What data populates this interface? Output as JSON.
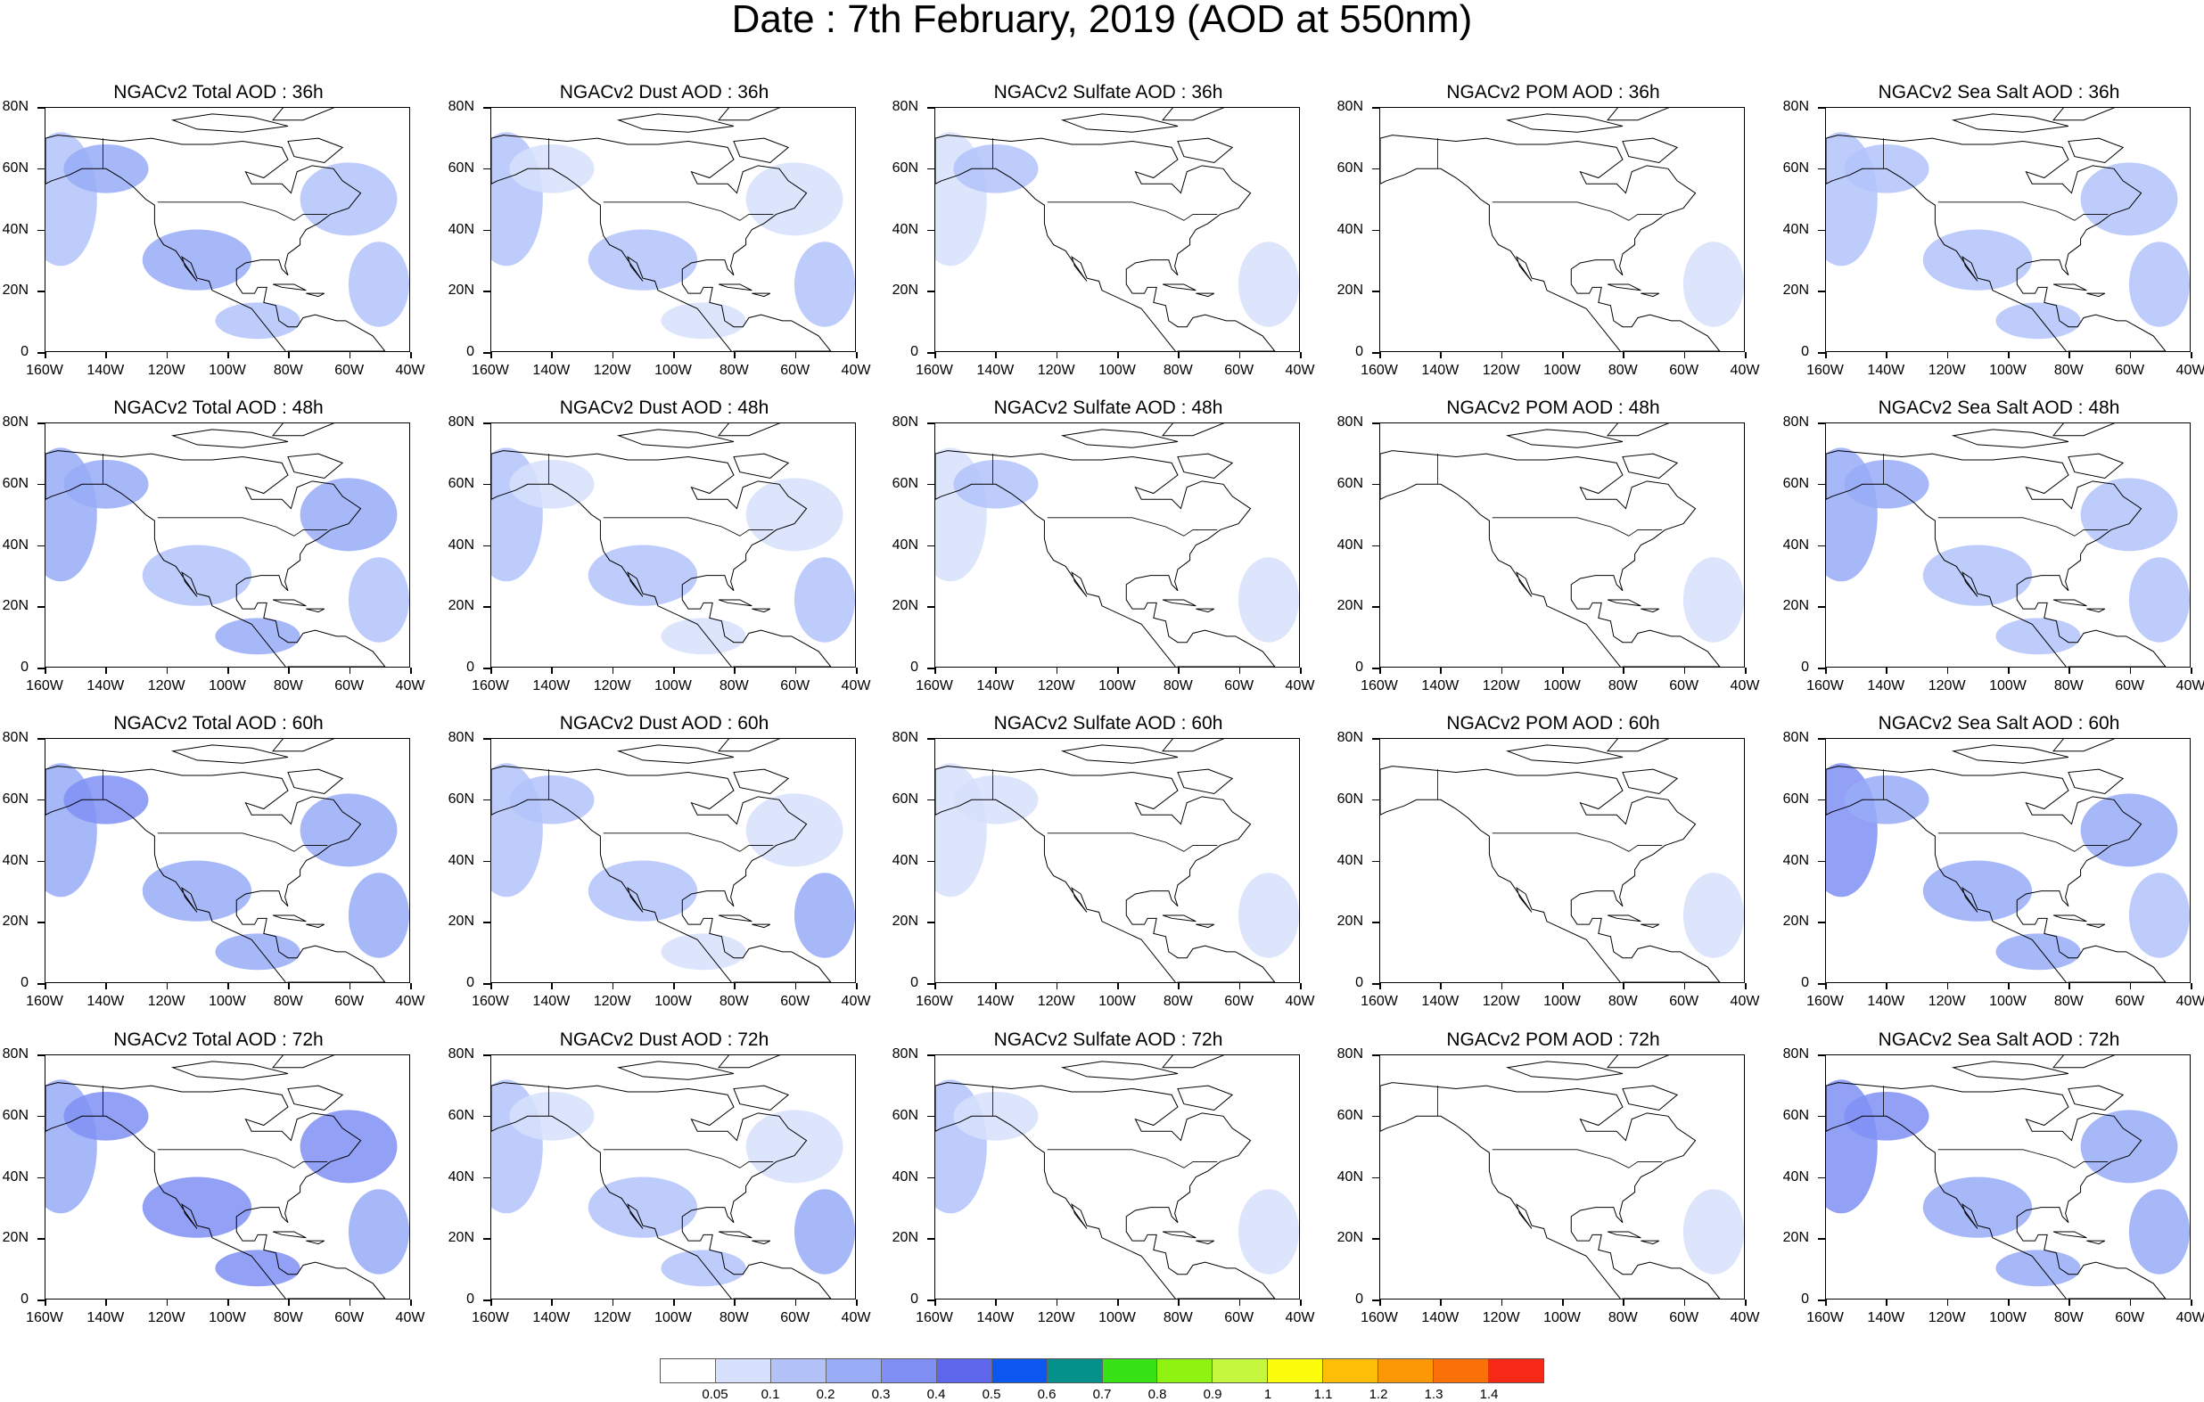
{
  "title": "Date : 7th February, 2019 (AOD at 550nm)",
  "row_labels": [
    "36h",
    "48h",
    "60h",
    "72h"
  ],
  "col_labels": [
    "Total",
    "Dust",
    "Sulfate",
    "POM",
    "Sea Salt"
  ],
  "panel_titles": [
    [
      "NGACv2 Total AOD : 36h",
      "NGACv2 Dust AOD : 36h",
      "NGACv2 Sulfate AOD : 36h",
      "NGACv2 POM AOD : 36h",
      "NGACv2 Sea Salt AOD : 36h"
    ],
    [
      "NGACv2 Total AOD : 48h",
      "NGACv2 Dust AOD : 48h",
      "NGACv2 Sulfate AOD : 48h",
      "NGACv2 POM AOD : 48h",
      "NGACv2 Sea Salt AOD : 48h"
    ],
    [
      "NGACv2 Total AOD : 60h",
      "NGACv2 Dust AOD : 60h",
      "NGACv2 Sulfate AOD : 60h",
      "NGACv2 POM AOD : 60h",
      "NGACv2 Sea Salt AOD : 60h"
    ],
    [
      "NGACv2 Total AOD : 72h",
      "NGACv2 Dust AOD : 72h",
      "NGACv2 Sulfate AOD : 72h",
      "NGACv2 POM AOD : 72h",
      "NGACv2 Sea Salt  AOD : 72h"
    ]
  ],
  "y_labels": [
    "80N",
    "60N",
    "40N",
    "20N",
    "0"
  ],
  "x_labels": [
    "160W",
    "140W",
    "120W",
    "100W",
    "80W",
    "60W",
    "40W"
  ],
  "colorbar": {
    "labels": [
      "0.05",
      "0.1",
      "0.2",
      "0.3",
      "0.4",
      "0.5",
      "0.6",
      "0.7",
      "0.8",
      "0.9",
      "1",
      "1.1",
      "1.2",
      "1.3",
      "1.4"
    ],
    "colors": [
      "#ffffff",
      "#d7e0fc",
      "#b3c3fa",
      "#98acf8",
      "#7f8ff4",
      "#5e66ec",
      "#0b57f0",
      "#04918c",
      "#37e314",
      "#8ef311",
      "#c6f73f",
      "#fcfc0d",
      "#fcbe07",
      "#fc9806",
      "#fb7008",
      "#f82817"
    ]
  },
  "plume_levels": {
    "total": [
      [
        0.15,
        0.2,
        0.15,
        0.15,
        0.2,
        0.15
      ],
      [
        0.2,
        0.25,
        0.2,
        0.15,
        0.15,
        0.2
      ],
      [
        0.2,
        0.3,
        0.25,
        0.2,
        0.2,
        0.25
      ],
      [
        0.25,
        0.35,
        0.3,
        0.25,
        0.3,
        0.3
      ]
    ],
    "dust": [
      [
        0.1,
        0.05,
        0.05,
        0.1,
        0.1,
        0.05
      ],
      [
        0.1,
        0.05,
        0.05,
        0.15,
        0.1,
        0.05
      ],
      [
        0.1,
        0.1,
        0.05,
        0.2,
        0.1,
        0.05
      ],
      [
        0.1,
        0.05,
        0.05,
        0.25,
        0.15,
        0.1
      ]
    ],
    "sulfate": [
      [
        0.05,
        0.1,
        0.0,
        0.05,
        0.0,
        0.0
      ],
      [
        0.05,
        0.1,
        0.0,
        0.05,
        0.0,
        0.0
      ],
      [
        0.05,
        0.05,
        0.0,
        0.05,
        0.0,
        0.0
      ],
      [
        0.1,
        0.05,
        0.0,
        0.05,
        0.0,
        0.0
      ]
    ],
    "pom": [
      [
        0.0,
        0.0,
        0.0,
        0.05,
        0.0,
        0.0
      ],
      [
        0.0,
        0.0,
        0.0,
        0.05,
        0.0,
        0.0
      ],
      [
        0.0,
        0.0,
        0.0,
        0.05,
        0.0,
        0.0
      ],
      [
        0.0,
        0.0,
        0.0,
        0.05,
        0.0,
        0.0
      ]
    ],
    "seasalt": [
      [
        0.15,
        0.15,
        0.1,
        0.1,
        0.15,
        0.1
      ],
      [
        0.25,
        0.2,
        0.15,
        0.1,
        0.15,
        0.15
      ],
      [
        0.3,
        0.25,
        0.2,
        0.15,
        0.2,
        0.2
      ],
      [
        0.35,
        0.3,
        0.25,
        0.2,
        0.25,
        0.25
      ]
    ]
  }
}
